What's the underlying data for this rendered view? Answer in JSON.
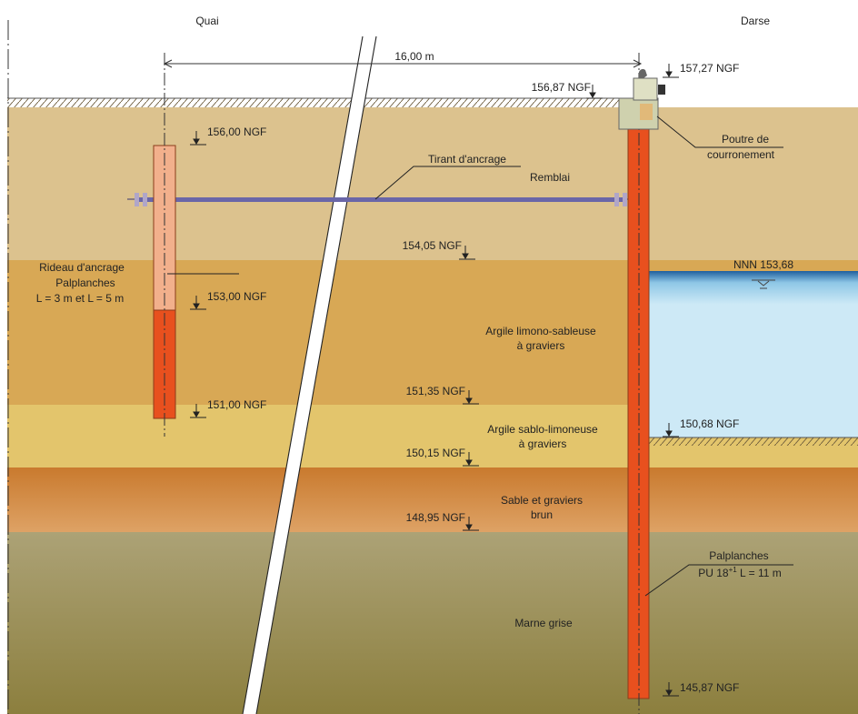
{
  "headers": {
    "left": "Quai",
    "right": "Darse"
  },
  "dimension": {
    "label": "16,00 m"
  },
  "levels": {
    "cap_top": "157,27 NGF",
    "ground": "156,87 NGF",
    "anchor_top": "156,00 NGF",
    "layer1_bottom": "154,05 NGF",
    "anchor_change": "153,00 NGF",
    "anchor_bottom": "151,00 NGF",
    "layer2_bottom": "151,35 NGF",
    "dock_floor": "150,68 NGF",
    "layer3_bottom": "150,15 NGF",
    "layer4_bottom": "148,95 NGF",
    "main_pile_bottom": "145,87 NGF"
  },
  "water": {
    "label": "NNN 153,68"
  },
  "soil_layers": {
    "remblai": {
      "name": "Remblai",
      "color": "#dcc28e"
    },
    "argile_limono": {
      "line1": "Argile limono-sableuse",
      "line2": "à graviers",
      "color": "#d8a855"
    },
    "argile_sablo": {
      "line1": "Argile sablo-limoneuse",
      "line2": "à graviers",
      "color": "#e3c56c"
    },
    "sable": {
      "line1": "Sable et graviers",
      "line2": "brun",
      "color": "#cf8339"
    },
    "marne": {
      "name": "Marne grise",
      "color": "#9a8f55"
    }
  },
  "annotations": {
    "tirant": "Tirant d'ancrage",
    "rideau": {
      "line1": "Rideau d'ancrage",
      "line2": "Palplanches",
      "line3": "L = 3 m et L = 5 m"
    },
    "poutre": {
      "line1": "Poutre de",
      "line2": "courronement"
    },
    "palplanches": {
      "line1": "Palplanches",
      "line2_prefix": "PU 18",
      "line2_sup": "+1",
      "line2_suffix": " L = 11 m"
    }
  },
  "colors": {
    "pile": "#e8501e",
    "pile_light": "#f2b08c",
    "water": "#cde9f6",
    "rod": "#6a66a8",
    "cap": "#cfd1ae"
  }
}
